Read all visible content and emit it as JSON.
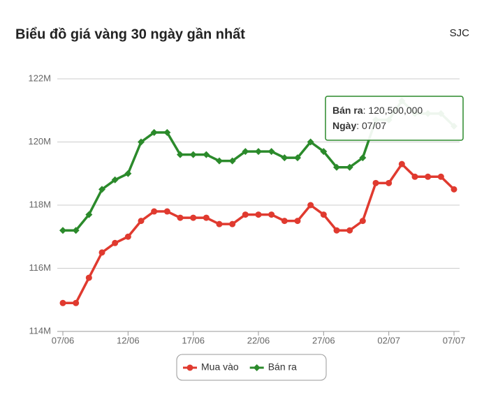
{
  "header": {
    "title": "Biểu đồ giá vàng 30 ngày gần nhất",
    "source": "SJC"
  },
  "chart_data": {
    "type": "line",
    "categories": [
      "07/06",
      null,
      null,
      null,
      null,
      "12/06",
      null,
      null,
      null,
      null,
      "17/06",
      null,
      null,
      null,
      null,
      "22/06",
      null,
      null,
      null,
      null,
      "27/06",
      null,
      null,
      null,
      null,
      "02/07",
      null,
      null,
      null,
      null,
      "07/07"
    ],
    "series": [
      {
        "name": "Mua vào",
        "color": "#e03a2f",
        "marker": "circle",
        "values": [
          114900000,
          114900000,
          115700000,
          116500000,
          116800000,
          117000000,
          117500000,
          117800000,
          117800000,
          117600000,
          117600000,
          117600000,
          117400000,
          117400000,
          117700000,
          117700000,
          117700000,
          117500000,
          117500000,
          118000000,
          117700000,
          117200000,
          117200000,
          117500000,
          118700000,
          118700000,
          119300000,
          118900000,
          118900000,
          118900000,
          118500000
        ]
      },
      {
        "name": "Bán ra",
        "color": "#2b8a2b",
        "marker": "diamond",
        "values": [
          117200000,
          117200000,
          117700000,
          118500000,
          118800000,
          119000000,
          120000000,
          120300000,
          120300000,
          119600000,
          119600000,
          119600000,
          119400000,
          119400000,
          119700000,
          119700000,
          119700000,
          119500000,
          119500000,
          120000000,
          119700000,
          119200000,
          119200000,
          119500000,
          120700000,
          120700000,
          121300000,
          120900000,
          120900000,
          120900000,
          120500000
        ]
      }
    ],
    "ylim": [
      114000000,
      122000000
    ],
    "yticks": [
      {
        "value": 114000000,
        "label": "114M"
      },
      {
        "value": 116000000,
        "label": "116M"
      },
      {
        "value": 118000000,
        "label": "118M"
      },
      {
        "value": 120000000,
        "label": "120M"
      },
      {
        "value": 122000000,
        "label": "122M"
      }
    ],
    "grid": true,
    "legend": "bottom",
    "tooltip": {
      "series_label": "Bán ra",
      "value_label": ": 120,500,000",
      "date_label": "Ngày",
      "date": ": 07/07"
    }
  }
}
